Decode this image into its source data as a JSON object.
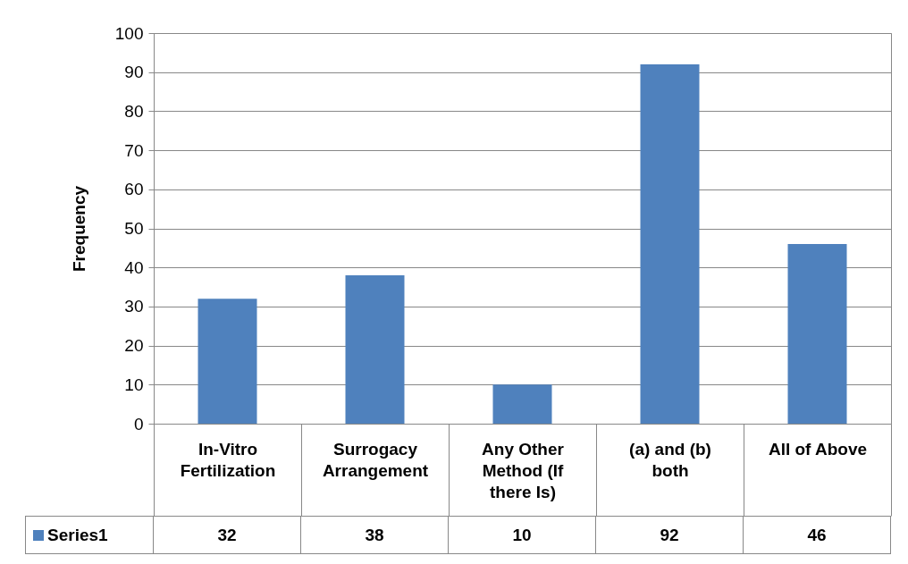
{
  "chart_data": {
    "type": "bar",
    "ylabel": "Frequency",
    "categories": [
      "In-Vitro Fertilization",
      "Surrogacy Arrangement",
      "Any Other Method (If there Is)",
      "(a) and (b) both",
      "All of Above"
    ],
    "series": [
      {
        "name": "Series1",
        "color": "#4f81bd",
        "values": [
          32,
          38,
          10,
          92,
          46
        ]
      }
    ],
    "ylim": [
      0,
      100
    ],
    "yticks": [
      0,
      10,
      20,
      30,
      40,
      50,
      60,
      70,
      80,
      90,
      100
    ],
    "grid": "y",
    "legend": "bottom",
    "data_labels": true
  }
}
